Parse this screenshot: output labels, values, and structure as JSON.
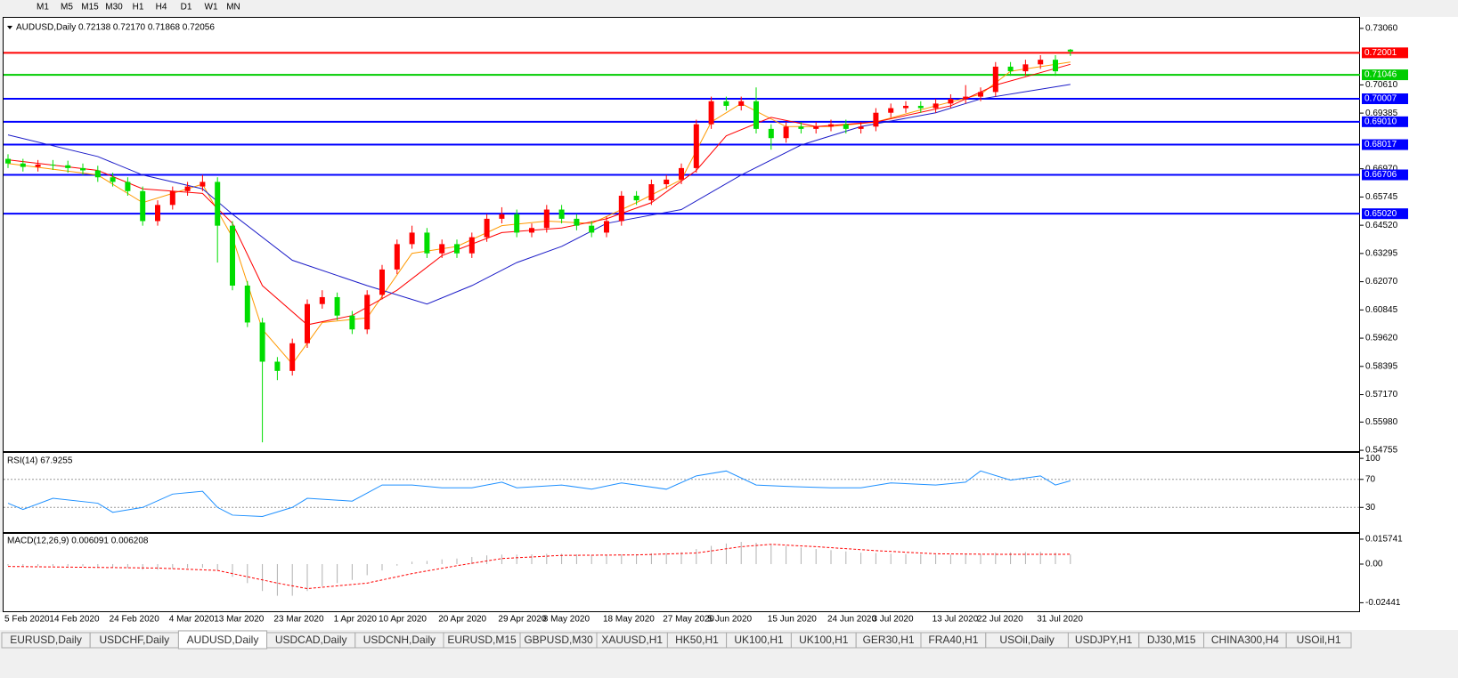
{
  "toolbar": {
    "timeframes": [
      "M1",
      "M5",
      "M15",
      "M30",
      "H1",
      "H4",
      "D1",
      "W1",
      "MN"
    ]
  },
  "chart_data": [
    {
      "type": "candlestick",
      "title": "AUDUSD,Daily",
      "subtitle": "0.72138 0.72170 0.71868 0.72056",
      "categories": [
        "5 Feb 2020",
        null,
        null,
        "14 Feb 2020",
        null,
        null,
        null,
        "24 Feb 2020",
        null,
        null,
        null,
        "4 Mar 2020",
        null,
        null,
        "13 Mar 2020",
        null,
        null,
        null,
        "23 Mar 2020",
        null,
        null,
        null,
        "1 Apr 2020",
        null,
        null,
        "10 Apr 2020",
        null,
        null,
        null,
        "20 Apr 2020",
        null,
        null,
        null,
        "29 Apr 2020",
        null,
        null,
        "8 May 2020",
        null,
        null,
        null,
        "18 May 2020",
        null,
        null,
        null,
        "27 May 2020",
        null,
        null,
        "5 Jun 2020",
        null,
        null,
        null,
        "15 Jun 2020",
        null,
        null,
        null,
        "24 Jun 2020",
        null,
        null,
        "3 Jul 2020",
        null,
        null,
        null,
        "13 Jul 2020",
        null,
        null,
        "22 Jul 2020",
        null,
        null,
        null,
        "31 Jul 2020",
        null,
        null
      ],
      "open": [
        0.674,
        0.672,
        0.6705,
        0.6715,
        0.6712,
        0.67,
        0.669,
        0.666,
        0.664,
        0.66,
        0.647,
        0.654,
        0.66,
        0.662,
        0.664,
        0.645,
        0.619,
        0.603,
        0.586,
        0.582,
        0.594,
        0.611,
        0.614,
        0.606,
        0.6,
        0.615,
        0.626,
        0.637,
        0.642,
        0.633,
        0.637,
        0.633,
        0.64,
        0.648,
        0.65,
        0.642,
        0.644,
        0.652,
        0.648,
        0.645,
        0.642,
        0.647,
        0.658,
        0.656,
        0.663,
        0.665,
        0.67,
        0.689,
        0.699,
        0.697,
        0.699,
        0.687,
        0.683,
        0.688,
        0.687,
        0.688,
        0.689,
        0.687,
        0.688,
        0.694,
        0.696,
        0.697,
        0.696,
        0.698,
        0.7,
        0.701,
        0.703,
        0.714,
        0.712,
        0.715,
        0.717,
        0.72138
      ],
      "high": [
        0.676,
        0.674,
        0.6735,
        0.6735,
        0.6732,
        0.672,
        0.671,
        0.668,
        0.666,
        0.662,
        0.656,
        0.662,
        0.664,
        0.667,
        0.666,
        0.647,
        0.621,
        0.605,
        0.588,
        0.596,
        0.613,
        0.617,
        0.616,
        0.608,
        0.617,
        0.628,
        0.639,
        0.645,
        0.644,
        0.639,
        0.639,
        0.642,
        0.65,
        0.653,
        0.652,
        0.646,
        0.654,
        0.654,
        0.65,
        0.647,
        0.649,
        0.66,
        0.66,
        0.665,
        0.667,
        0.672,
        0.691,
        0.701,
        0.701,
        0.701,
        0.705,
        0.689,
        0.69,
        0.69,
        0.69,
        0.691,
        0.691,
        0.69,
        0.696,
        0.698,
        0.699,
        0.699,
        0.7,
        0.702,
        0.706,
        0.705,
        0.716,
        0.716,
        0.717,
        0.719,
        0.719,
        0.7217
      ],
      "low": [
        0.67,
        0.6685,
        0.6685,
        0.6692,
        0.668,
        0.667,
        0.664,
        0.662,
        0.658,
        0.645,
        0.645,
        0.652,
        0.658,
        0.66,
        0.629,
        0.617,
        0.601,
        0.551,
        0.578,
        0.58,
        0.592,
        0.609,
        0.604,
        0.598,
        0.598,
        0.613,
        0.624,
        0.635,
        0.631,
        0.631,
        0.631,
        0.631,
        0.638,
        0.646,
        0.64,
        0.64,
        0.642,
        0.646,
        0.643,
        0.64,
        0.64,
        0.645,
        0.654,
        0.654,
        0.661,
        0.663,
        0.668,
        0.687,
        0.695,
        0.695,
        0.685,
        0.678,
        0.681,
        0.685,
        0.685,
        0.686,
        0.685,
        0.685,
        0.686,
        0.692,
        0.694,
        0.694,
        0.694,
        0.696,
        0.698,
        0.699,
        0.701,
        0.71,
        0.71,
        0.713,
        0.71,
        0.71868
      ],
      "close": [
        0.672,
        0.6705,
        0.6715,
        0.6712,
        0.67,
        0.669,
        0.666,
        0.664,
        0.66,
        0.647,
        0.654,
        0.66,
        0.662,
        0.664,
        0.645,
        0.619,
        0.603,
        0.586,
        0.582,
        0.594,
        0.611,
        0.614,
        0.606,
        0.6,
        0.615,
        0.626,
        0.637,
        0.642,
        0.633,
        0.637,
        0.633,
        0.64,
        0.648,
        0.65,
        0.642,
        0.644,
        0.652,
        0.648,
        0.645,
        0.642,
        0.647,
        0.658,
        0.656,
        0.663,
        0.665,
        0.67,
        0.689,
        0.699,
        0.697,
        0.699,
        0.687,
        0.683,
        0.688,
        0.687,
        0.688,
        0.689,
        0.687,
        0.688,
        0.694,
        0.696,
        0.697,
        0.696,
        0.698,
        0.7,
        0.701,
        0.703,
        0.714,
        0.712,
        0.715,
        0.717,
        0.712,
        0.72056
      ],
      "up_color": "#ff0000",
      "down_color": "#00dd00",
      "series": [
        {
          "color": "#ff9900",
          "x": [
            0,
            6,
            9,
            13,
            15,
            17,
            19,
            21,
            24,
            27,
            30,
            33,
            36,
            39,
            42,
            45,
            47,
            49,
            52,
            55,
            58,
            62,
            65,
            67,
            71
          ],
          "values": [
            0.672,
            0.667,
            0.655,
            0.663,
            0.64,
            0.6,
            0.585,
            0.603,
            0.605,
            0.633,
            0.636,
            0.645,
            0.647,
            0.646,
            0.655,
            0.665,
            0.69,
            0.698,
            0.688,
            0.688,
            0.69,
            0.697,
            0.702,
            0.712,
            0.716
          ]
        },
        {
          "color": "#ff0000",
          "x": [
            0,
            6,
            9,
            13,
            15,
            17,
            20,
            23,
            26,
            29,
            33,
            37,
            40,
            43,
            46,
            48,
            51,
            54,
            58,
            63,
            66,
            71
          ],
          "values": [
            0.6736,
            0.669,
            0.661,
            0.659,
            0.646,
            0.619,
            0.602,
            0.606,
            0.617,
            0.632,
            0.642,
            0.644,
            0.648,
            0.655,
            0.669,
            0.684,
            0.692,
            0.688,
            0.69,
            0.697,
            0.706,
            0.715
          ]
        },
        {
          "color": "#1c1cc8",
          "x": [
            0,
            6,
            9,
            13,
            15,
            19,
            24,
            28,
            31,
            34,
            37,
            40,
            45,
            49,
            53,
            57,
            62,
            65,
            71
          ],
          "values": [
            0.6844,
            0.675,
            0.667,
            0.661,
            0.65,
            0.63,
            0.619,
            0.611,
            0.619,
            0.629,
            0.636,
            0.646,
            0.652,
            0.667,
            0.68,
            0.688,
            0.694,
            0.7,
            0.7063
          ]
        }
      ],
      "levels": [
        {
          "value": 0.72001,
          "color": "#ff0000"
        },
        {
          "value": 0.71046,
          "color": "#00cc00"
        },
        {
          "value": 0.70007,
          "color": "#0000ff"
        },
        {
          "value": 0.6901,
          "label": "0.69010",
          "color": "#0000ff"
        },
        {
          "value": 0.68017,
          "color": "#0000ff"
        },
        {
          "value": 0.66706,
          "color": "#0000ff"
        },
        {
          "value": 0.6502,
          "label": "0.65020",
          "color": "#0000ff"
        }
      ],
      "ylim": [
        0.5472,
        0.7352
      ],
      "yticks": [
        {
          "value": 0.7306,
          "label": "0.73060"
        },
        {
          "value": 0.7061,
          "label": "0.70610"
        },
        0.69385,
        {
          "value": 0.6697,
          "label": "0.66970"
        },
        0.65745,
        {
          "value": 0.6452,
          "label": "0.64520"
        },
        0.63295,
        {
          "value": 0.6207,
          "label": "0.62070"
        },
        0.60845,
        {
          "value": 0.5962,
          "label": "0.59620"
        },
        0.58395,
        {
          "value": 0.5717,
          "label": "0.57170"
        },
        {
          "value": 0.5598,
          "label": "0.55980"
        },
        0.54755
      ]
    },
    {
      "type": "line",
      "title": "RSI(14) 67.9255",
      "color": "#1e90ff",
      "x": [
        0,
        1,
        3,
        6,
        7,
        9,
        11,
        13,
        14,
        15,
        17,
        19,
        20,
        23,
        25,
        27,
        29,
        31,
        33,
        34,
        37,
        39,
        41,
        44,
        46,
        48,
        50,
        52,
        55,
        57,
        59,
        62,
        64,
        65,
        67,
        69,
        70,
        71
      ],
      "values": [
        36,
        27,
        43,
        36,
        23,
        30,
        49,
        53,
        30,
        19,
        17,
        30,
        43,
        39,
        62,
        62,
        58,
        58,
        66,
        58,
        62,
        56,
        65,
        56,
        75,
        82,
        62,
        60,
        58,
        58,
        65,
        62,
        66,
        82,
        69,
        75,
        62,
        67.9255
      ],
      "levels": [
        70,
        30
      ],
      "ylim": [
        -5.2,
        107.8
      ],
      "yticks": [
        100,
        70,
        30
      ]
    },
    {
      "type": "macd",
      "title": "MACD(12,26,9) 0.006091 0.006208",
      "color": "#b0b0b0",
      "values": [
        -0.001,
        -0.0012,
        -0.0013,
        -0.0012,
        -0.0014,
        -0.0015,
        -0.0018,
        -0.002,
        -0.0025,
        -0.0035,
        -0.0035,
        -0.003,
        -0.0025,
        -0.0022,
        -0.004,
        -0.008,
        -0.012,
        -0.017,
        -0.02,
        -0.02,
        -0.017,
        -0.014,
        -0.012,
        -0.01,
        -0.007,
        -0.004,
        -0.001,
        0.0015,
        0.002,
        0.003,
        0.0035,
        0.0045,
        0.0055,
        0.006,
        0.006,
        0.0062,
        0.0065,
        0.0065,
        0.0062,
        0.0058,
        0.0058,
        0.0062,
        0.0062,
        0.0068,
        0.007,
        0.0075,
        0.0095,
        0.0115,
        0.013,
        0.014,
        0.0135,
        0.0125,
        0.0115,
        0.0105,
        0.0095,
        0.0088,
        0.008,
        0.0072,
        0.007,
        0.0066,
        0.0064,
        0.0062,
        0.006,
        0.006,
        0.0062,
        0.0064,
        0.0072,
        0.0074,
        0.0076,
        0.0078,
        0.0072,
        0.006091
      ],
      "signal": {
        "color": "#ff0000",
        "x": [
          0,
          10,
          14,
          18,
          20,
          24,
          27,
          30,
          33,
          37,
          42,
          46,
          49,
          51,
          54,
          58,
          62,
          66,
          71
        ],
        "values": [
          -0.0015,
          -0.0025,
          -0.004,
          -0.012,
          -0.0155,
          -0.012,
          -0.006,
          -0.001,
          0.0035,
          0.0055,
          0.0058,
          0.007,
          0.011,
          0.0125,
          0.011,
          0.0085,
          0.0065,
          0.0062,
          0.006208
        ]
      },
      "ylim": [
        -0.0298,
        0.0191
      ],
      "yticks": [
        0.015741,
        {
          "value": 0,
          "label": "0.00"
        },
        -0.02441
      ]
    }
  ],
  "tabs": [
    "EURUSD,Daily",
    "USDCHF,Daily",
    "AUDUSD,Daily",
    "USDCAD,Daily",
    "USDCNH,Daily",
    "EURUSD,M15",
    "GBPUSD,M30",
    "XAUUSD,H1",
    "HK50,H1",
    "UK100,H1",
    "UK100,H1",
    "GER30,H1",
    "FRA40,H1",
    "USOil,Daily",
    "USDJPY,H1",
    "DJ30,M15",
    "CHINA300,H4",
    "USOil,H1"
  ],
  "active_tab": 2
}
